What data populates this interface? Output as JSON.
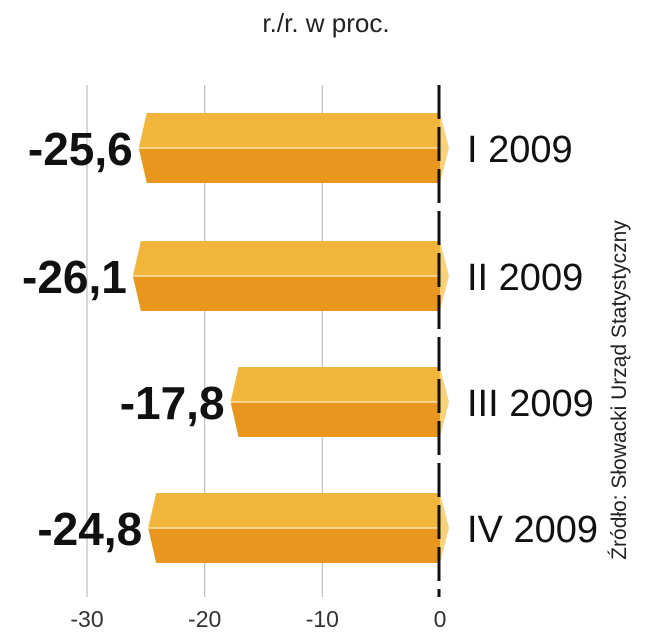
{
  "header": {
    "unit": "r./r. w proc."
  },
  "source": "Źródło: Słowacki Urząd Statystyczny",
  "chart_data": {
    "type": "bar",
    "orientation": "horizontal",
    "title": "",
    "subtitle": "r./r. w proc.",
    "xlabel": "",
    "ylabel": "",
    "xlim": [
      -30,
      0
    ],
    "xticks": [
      "-30",
      "-20",
      "-10",
      "0"
    ],
    "grid": true,
    "categories": [
      "I 2009",
      "II 2009",
      "III 2009",
      "IV 2009"
    ],
    "values": [
      -25.6,
      -26.1,
      -17.8,
      -24.8
    ],
    "value_labels": [
      "-25,6",
      "-26,1",
      "-17,8",
      "-24,8"
    ],
    "colors": {
      "bar_top": "#f2b53c",
      "bar_bottom": "#e8961d",
      "bar_cap": "#f7d27a",
      "axis": "#111111",
      "grid": "#bfbfbf"
    }
  }
}
